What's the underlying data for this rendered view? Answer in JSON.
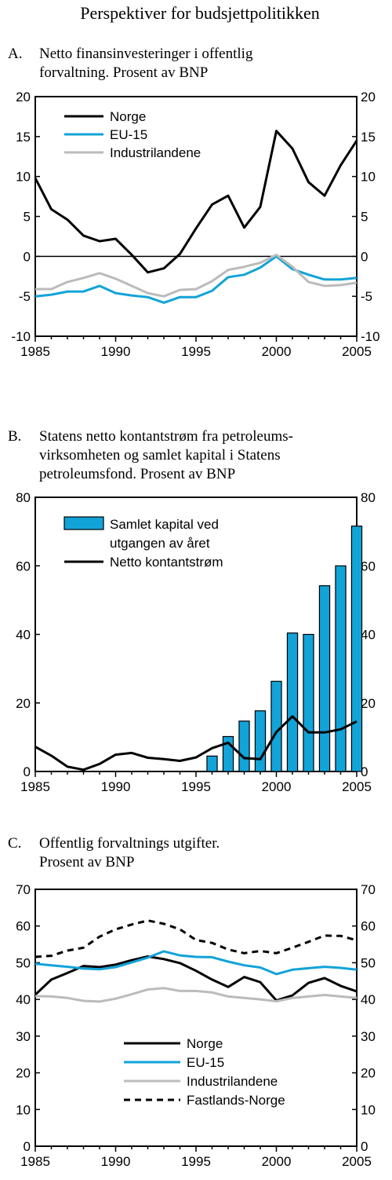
{
  "figure": {
    "title": "Perspektiver for budsjettpolitikken"
  },
  "chart_data": [
    {
      "type": "line",
      "panel_label": "A.",
      "title_lines": [
        "Netto finansinvesteringer i offentlig",
        "forvaltning. Prosent av BNP"
      ],
      "x": [
        1985,
        1986,
        1987,
        1988,
        1989,
        1990,
        1991,
        1992,
        1993,
        1994,
        1995,
        1996,
        1997,
        1998,
        1999,
        2000,
        2001,
        2002,
        2003,
        2004,
        2005
      ],
      "xlim": [
        1985,
        2005
      ],
      "ylim": [
        -10,
        20
      ],
      "x_ticks": [
        "1985",
        "1990",
        "1995",
        "2000",
        "2005"
      ],
      "y_ticks": [
        "20",
        "15",
        "10",
        "5",
        "0",
        "-5",
        "-10"
      ],
      "legend_position": "top-left",
      "series": [
        {
          "name": "Norge",
          "color": "#000000",
          "style": "solid",
          "values": [
            9.8,
            5.9,
            4.6,
            2.6,
            1.9,
            2.2,
            0.2,
            -2.0,
            -1.5,
            0.3,
            3.5,
            6.5,
            7.6,
            3.6,
            6.2,
            15.7,
            13.5,
            9.3,
            7.6,
            11.4,
            14.5
          ]
        },
        {
          "name": "EU-15",
          "color": "#12a3d8",
          "style": "solid",
          "values": [
            -5.0,
            -4.8,
            -4.4,
            -4.4,
            -3.7,
            -4.6,
            -4.9,
            -5.1,
            -5.8,
            -5.1,
            -5.1,
            -4.3,
            -2.6,
            -2.3,
            -1.4,
            0.0,
            -1.6,
            -2.3,
            -2.9,
            -2.9,
            -2.7
          ]
        },
        {
          "name": "Industrilandene",
          "color": "#bbbbbb",
          "style": "solid",
          "values": [
            -4.1,
            -4.1,
            -3.2,
            -2.7,
            -2.1,
            -2.8,
            -3.7,
            -4.6,
            -5.0,
            -4.2,
            -4.1,
            -3.1,
            -1.7,
            -1.3,
            -0.8,
            0.2,
            -1.3,
            -3.2,
            -3.7,
            -3.6,
            -3.3
          ]
        }
      ]
    },
    {
      "type": "bar+line",
      "panel_label": "B.",
      "title_lines": [
        "Statens netto kontantstrøm fra petroleums-",
        "virksomheten og samlet kapital i Statens",
        "petroleumsfond. Prosent av BNP"
      ],
      "xlim": [
        1985,
        2005
      ],
      "ylim": [
        0,
        80
      ],
      "x_ticks": [
        "1985",
        "1990",
        "1995",
        "2000",
        "2005"
      ],
      "y_ticks": [
        "80",
        "60",
        "40",
        "20",
        "0"
      ],
      "legend_position": "top-left",
      "bars": {
        "name_lines": [
          "Samlet kapital ved",
          "utgangen av året"
        ],
        "color": "#12a3d8",
        "x": [
          1996,
          1997,
          1998,
          1999,
          2000,
          2001,
          2002,
          2003,
          2004,
          2005
        ],
        "values": [
          4.5,
          10.2,
          14.7,
          17.7,
          26.3,
          40.4,
          40.0,
          54.2,
          60.0,
          71.6
        ]
      },
      "line": {
        "name": "Netto kontantstrøm",
        "color": "#000000",
        "x": [
          1985,
          1986,
          1987,
          1988,
          1989,
          1990,
          1991,
          1992,
          1993,
          1994,
          1995,
          1996,
          1997,
          1998,
          1999,
          2000,
          2001,
          2002,
          2003,
          2004,
          2005
        ],
        "values": [
          7.2,
          4.6,
          1.4,
          0.5,
          2.2,
          4.9,
          5.4,
          4.0,
          3.6,
          3.1,
          4.1,
          6.8,
          8.4,
          3.9,
          3.6,
          11.5,
          16.1,
          11.4,
          11.4,
          12.3,
          14.6
        ]
      }
    },
    {
      "type": "line",
      "panel_label": "C.",
      "title_lines": [
        "Offentlig forvaltnings utgifter.",
        "Prosent av BNP"
      ],
      "x": [
        1985,
        1986,
        1987,
        1988,
        1989,
        1990,
        1991,
        1992,
        1993,
        1994,
        1995,
        1996,
        1997,
        1998,
        1999,
        2000,
        2001,
        2002,
        2003,
        2004,
        2005
      ],
      "xlim": [
        1985,
        2005
      ],
      "ylim": [
        0,
        70
      ],
      "x_ticks": [
        "1985",
        "1990",
        "1995",
        "2000",
        "2005"
      ],
      "y_ticks": [
        "70",
        "60",
        "50",
        "40",
        "30",
        "20",
        "10",
        "0"
      ],
      "legend_position": "bottom-center",
      "series": [
        {
          "name": "Norge",
          "color": "#000000",
          "style": "solid",
          "values": [
            41.3,
            45.4,
            47.2,
            49.1,
            48.8,
            49.5,
            50.7,
            51.7,
            51.0,
            49.9,
            47.8,
            45.4,
            43.4,
            46.1,
            44.7,
            39.7,
            41.1,
            44.5,
            45.8,
            43.7,
            42.2
          ]
        },
        {
          "name": "EU-15",
          "color": "#12a3d8",
          "style": "solid",
          "values": [
            49.7,
            49.3,
            48.9,
            48.4,
            48.2,
            48.8,
            50.1,
            51.4,
            53.1,
            52.0,
            51.6,
            51.5,
            50.3,
            49.3,
            48.7,
            46.9,
            48.1,
            48.5,
            48.9,
            48.6,
            48.1
          ]
        },
        {
          "name": "Industrilandene",
          "color": "#bbbbbb",
          "style": "solid",
          "values": [
            40.9,
            40.8,
            40.4,
            39.6,
            39.4,
            40.2,
            41.4,
            42.7,
            43.1,
            42.3,
            42.3,
            41.9,
            40.8,
            40.4,
            40.0,
            39.5,
            40.4,
            40.8,
            41.2,
            40.8,
            40.4
          ]
        },
        {
          "name": "Fastlands-Norge",
          "color": "#000000",
          "style": "dashed",
          "values": [
            51.6,
            51.9,
            53.3,
            54.1,
            57.1,
            59.1,
            60.4,
            61.5,
            60.6,
            59.1,
            56.2,
            55.4,
            53.6,
            52.6,
            53.2,
            52.6,
            54.1,
            55.7,
            57.4,
            57.3,
            56.1
          ]
        }
      ]
    }
  ]
}
